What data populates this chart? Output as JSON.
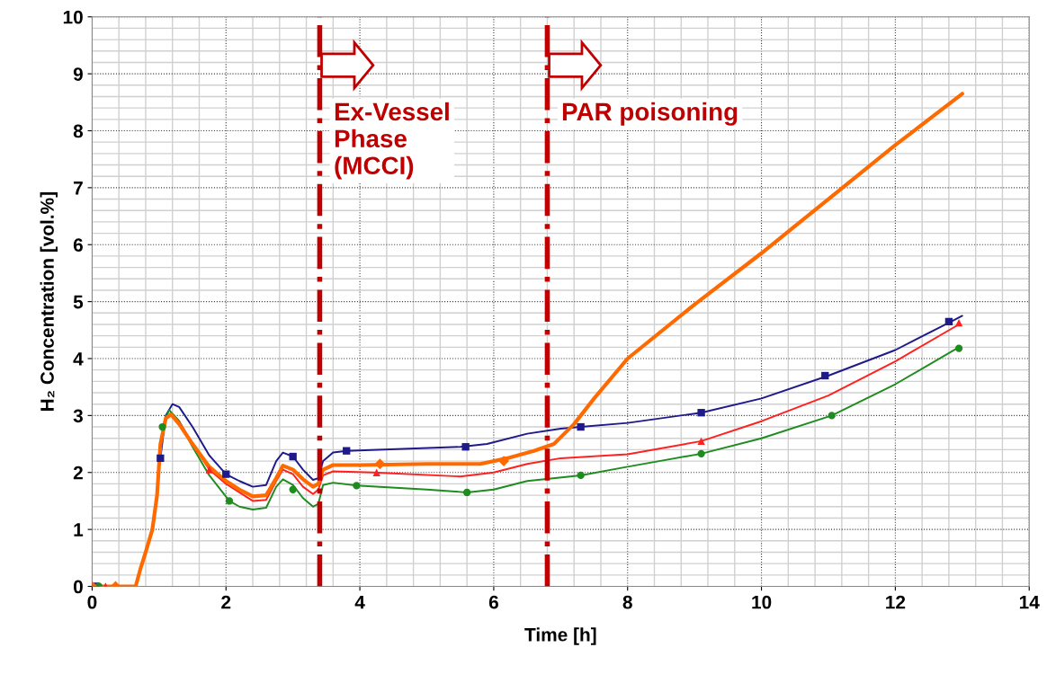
{
  "chart_data": {
    "type": "line",
    "xlabel": "Time [h]",
    "ylabel": "H₂ Concentration [vol.%]",
    "xlim": [
      0,
      14
    ],
    "xticks": [
      0,
      2,
      4,
      6,
      8,
      10,
      12,
      14
    ],
    "ylim": [
      0,
      10
    ],
    "yticks": [
      0,
      1,
      2,
      3,
      4,
      5,
      6,
      7,
      8,
      9,
      10
    ],
    "grid": true,
    "line_style": "solid",
    "ref_lines": [
      {
        "axis": "x",
        "value": 3.4,
        "label": "Ex-Vessel\nPhase\n(MCCI)",
        "color": "#c00000",
        "line_style": "dashdot"
      },
      {
        "axis": "x",
        "value": 6.8,
        "label": "PAR poisoning",
        "color": "#c00000",
        "line_style": "dashdot"
      }
    ],
    "series": [
      {
        "color": "#1f1a8a",
        "x": [
          1.02,
          1.1,
          1.2,
          1.3,
          1.5,
          1.75,
          2.0,
          2.2,
          2.4,
          2.6,
          2.75,
          2.85,
          3.0,
          3.15,
          3.3,
          3.38,
          3.45,
          3.6,
          3.8,
          5.5,
          5.9,
          6.5,
          7.0,
          7.3,
          8,
          9.1,
          10,
          11,
          12,
          12.8,
          13
        ],
        "values": [
          2.25,
          3.0,
          3.2,
          3.15,
          2.8,
          2.3,
          1.97,
          1.85,
          1.75,
          1.78,
          2.2,
          2.35,
          2.28,
          2.05,
          1.87,
          1.9,
          2.2,
          2.35,
          2.38,
          2.45,
          2.5,
          2.68,
          2.77,
          2.8,
          2.87,
          3.05,
          3.3,
          3.7,
          4.15,
          4.63,
          4.75
        ]
      },
      {
        "color": "#ff2020",
        "x": [
          1.1,
          1.18,
          1.3,
          1.5,
          1.75,
          2.0,
          2.2,
          2.4,
          2.6,
          2.75,
          2.85,
          3.0,
          3.15,
          3.3,
          3.38,
          3.45,
          3.6,
          4.2,
          5.5,
          6,
          6.5,
          7,
          8,
          9.1,
          10,
          11,
          12,
          12.95
        ],
        "values": [
          2.95,
          3.05,
          2.9,
          2.5,
          2.05,
          1.8,
          1.65,
          1.5,
          1.52,
          1.85,
          2.05,
          1.97,
          1.75,
          1.62,
          1.7,
          1.95,
          2.02,
          2.0,
          1.93,
          2.0,
          2.15,
          2.25,
          2.32,
          2.55,
          2.9,
          3.35,
          3.95,
          4.6
        ]
      },
      {
        "color": "#1e8c1e",
        "x": [
          1.05,
          1.15,
          1.3,
          1.5,
          1.75,
          2.05,
          2.2,
          2.4,
          2.6,
          2.75,
          2.85,
          3.0,
          3.15,
          3.3,
          3.38,
          3.45,
          3.6,
          3.95,
          5,
          5.6,
          6,
          6.5,
          7.3,
          8,
          9.1,
          10,
          11.05,
          12,
          12.95
        ],
        "values": [
          2.8,
          3.1,
          2.9,
          2.45,
          1.95,
          1.5,
          1.4,
          1.35,
          1.38,
          1.75,
          1.88,
          1.78,
          1.55,
          1.4,
          1.45,
          1.78,
          1.82,
          1.77,
          1.7,
          1.65,
          1.7,
          1.85,
          1.95,
          2.1,
          2.33,
          2.6,
          3.0,
          3.55,
          4.2
        ]
      },
      {
        "color": "#ff6a00",
        "x": [
          0,
          0.65,
          0.72,
          0.8,
          0.9,
          0.97,
          1.02,
          1.1,
          1.18,
          1.3,
          1.5,
          1.75,
          2.0,
          2.2,
          2.4,
          2.6,
          2.75,
          2.85,
          3.0,
          3.15,
          3.3,
          3.38,
          3.45,
          3.6,
          4,
          5,
          5.8,
          6.2,
          6.6,
          6.9,
          7.2,
          7.5,
          8,
          9,
          10,
          11,
          12,
          13
        ],
        "values": [
          0,
          0,
          0.3,
          0.6,
          1.0,
          1.6,
          2.5,
          2.95,
          3.02,
          2.85,
          2.5,
          2.1,
          1.85,
          1.7,
          1.58,
          1.6,
          1.9,
          2.12,
          2.05,
          1.88,
          1.75,
          1.8,
          2.05,
          2.13,
          2.13,
          2.15,
          2.15,
          2.25,
          2.38,
          2.5,
          2.85,
          3.3,
          4.0,
          4.95,
          5.85,
          6.8,
          7.75,
          8.65
        ]
      },
      {
        "type": "scatter",
        "color": "#1f1a8a",
        "marker": "square",
        "x": [
          0.05,
          1.02,
          2.0,
          3.0,
          3.8,
          5.58,
          7.3,
          9.1,
          10.95,
          12.8
        ],
        "values": [
          0,
          2.25,
          1.97,
          2.28,
          2.38,
          2.45,
          2.8,
          3.05,
          3.7,
          4.65
        ]
      },
      {
        "type": "scatter",
        "color": "#ff2020",
        "marker": "triangle",
        "x": [
          0.2,
          1.75,
          4.25,
          9.1,
          12.95
        ],
        "values": [
          0,
          2.05,
          2.0,
          2.55,
          4.63
        ]
      },
      {
        "type": "scatter",
        "color": "#1e8c1e",
        "marker": "circle",
        "x": [
          0.1,
          1.05,
          2.05,
          3.0,
          3.95,
          5.6,
          7.3,
          9.1,
          11.05,
          12.95
        ],
        "values": [
          0,
          2.8,
          1.5,
          1.7,
          1.77,
          1.65,
          1.95,
          2.33,
          3.0,
          4.18
        ]
      },
      {
        "type": "scatter",
        "color": "#ff6a00",
        "marker": "diamond",
        "x": [
          0.0,
          0.35,
          4.3,
          6.15
        ],
        "values": [
          0,
          0,
          2.15,
          2.2
        ]
      }
    ]
  }
}
